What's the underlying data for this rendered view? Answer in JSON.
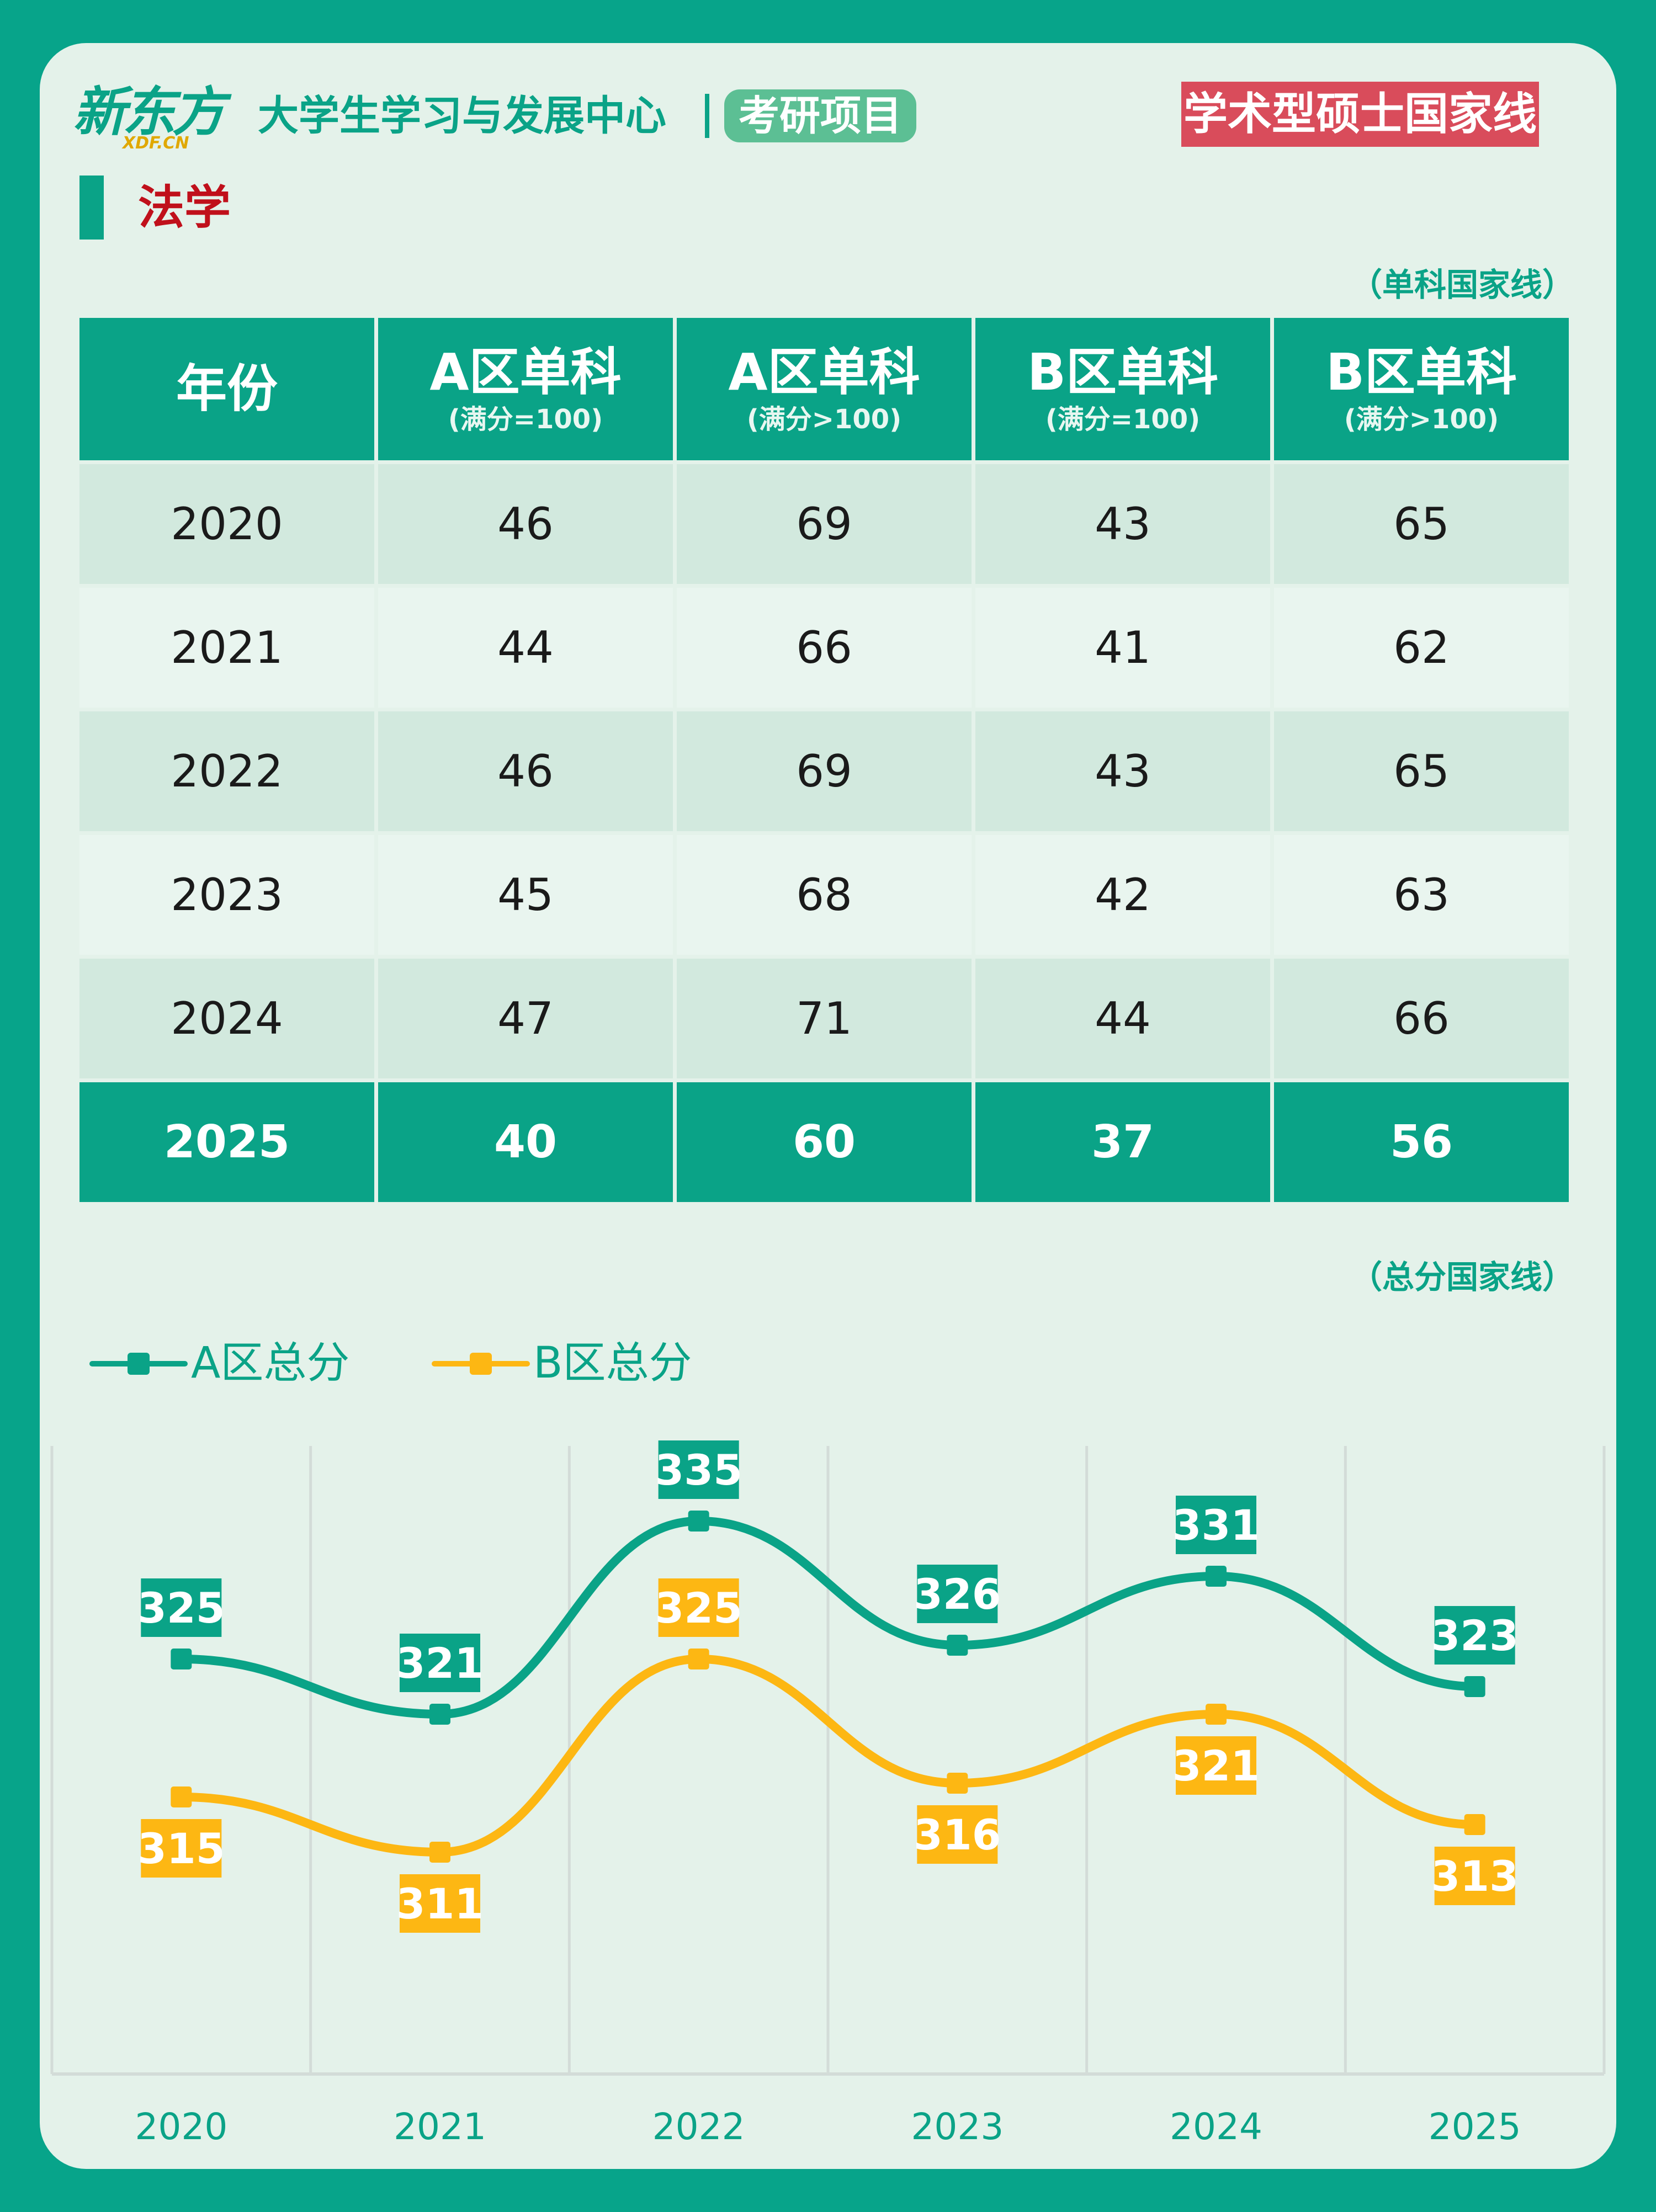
{
  "header": {
    "logo_main": "新东方",
    "logo_sub": "XDF.CN",
    "center_name": "大学生学习与发展中心",
    "project": "考研项目",
    "badge": "学术型硕士国家线"
  },
  "subject": "法学",
  "table_note": "（单科国家线）",
  "chart_note": "（总分国家线）",
  "table": {
    "columns": [
      {
        "label": "年份",
        "sub": ""
      },
      {
        "label": "A区单科",
        "sub": "(满分=100)"
      },
      {
        "label": "A区单科",
        "sub": "(满分>100)"
      },
      {
        "label": "B区单科",
        "sub": "(满分=100)"
      },
      {
        "label": "B区单科",
        "sub": "(满分>100)"
      }
    ],
    "rows": [
      [
        "2020",
        "46",
        "69",
        "43",
        "65"
      ],
      [
        "2021",
        "44",
        "66",
        "41",
        "62"
      ],
      [
        "2022",
        "46",
        "69",
        "43",
        "65"
      ],
      [
        "2023",
        "45",
        "68",
        "42",
        "63"
      ],
      [
        "2024",
        "47",
        "71",
        "44",
        "66"
      ],
      [
        "2025",
        "40",
        "60",
        "37",
        "56"
      ]
    ]
  },
  "colors": {
    "teal": "#0aa387",
    "orange": "#fdb713",
    "red_badge": "#d94c5b",
    "page_bg": "#07a48a",
    "card_bg": "#e4f2ea"
  },
  "chart_data": {
    "type": "line",
    "x": [
      "2020",
      "2021",
      "2022",
      "2023",
      "2024",
      "2025"
    ],
    "series": [
      {
        "name": "A区总分",
        "values": [
          325,
          321,
          335,
          326,
          331,
          323
        ],
        "color": "#0aa387"
      },
      {
        "name": "B区总分",
        "values": [
          315,
          311,
          325,
          316,
          321,
          313
        ],
        "color": "#fdb713"
      }
    ],
    "grid": "vertical",
    "smooth": true,
    "data_labels": true
  }
}
